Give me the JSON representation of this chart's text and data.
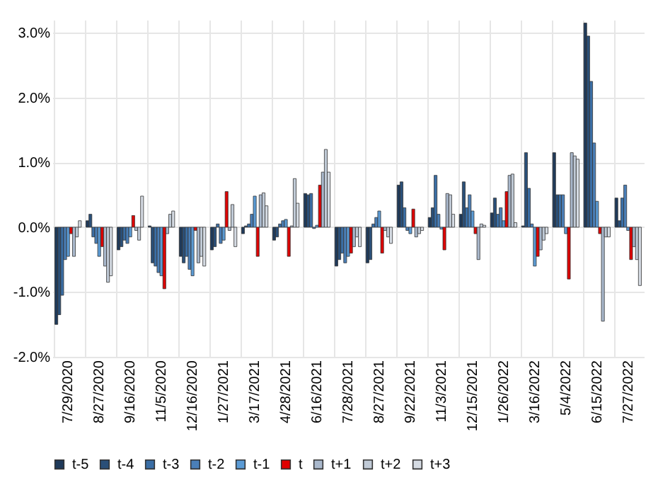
{
  "chart_data": {
    "type": "bar",
    "categories": [
      "7/29/2020",
      "8/27/2020",
      "9/16/2020",
      "11/5/2020",
      "12/16/2020",
      "1/27/2021",
      "3/17/2021",
      "4/28/2021",
      "6/16/2021",
      "7/28/2021",
      "8/27/2021",
      "9/22/2021",
      "11/3/2021",
      "12/15/2021",
      "1/26/2022",
      "3/16/2022",
      "5/4/2022",
      "6/15/2022",
      "7/27/2022"
    ],
    "series": [
      {
        "name": "t-5",
        "color": "#1f3a5a",
        "values": [
          -1.5,
          0.1,
          -0.35,
          0.02,
          -0.45,
          -0.35,
          -0.1,
          -0.2,
          0.52,
          -0.6,
          -0.55,
          0.65,
          0.15,
          0.2,
          0.22,
          0.02,
          1.15,
          3.15,
          0.45
        ]
      },
      {
        "name": "t-4",
        "color": "#2a4f78",
        "values": [
          -1.35,
          0.2,
          -0.3,
          -0.55,
          -0.55,
          -0.3,
          0.02,
          -0.15,
          0.5,
          -0.5,
          -0.5,
          0.7,
          0.3,
          0.7,
          0.45,
          1.15,
          0.5,
          2.95,
          0.1
        ]
      },
      {
        "name": "t-3",
        "color": "#3a6ea5",
        "values": [
          -1.05,
          -0.15,
          -0.2,
          -0.6,
          -0.45,
          0.05,
          0.05,
          0.05,
          0.52,
          -0.4,
          0.05,
          0.3,
          0.8,
          0.3,
          0.2,
          0.6,
          0.5,
          2.25,
          0.45
        ]
      },
      {
        "name": "t-2",
        "color": "#4a7fb8",
        "values": [
          -0.5,
          -0.25,
          -0.25,
          -0.7,
          -0.65,
          -0.25,
          0.2,
          0.1,
          -0.02,
          -0.55,
          0.15,
          -0.05,
          0.2,
          0.5,
          0.3,
          0.05,
          0.5,
          1.3,
          0.65
        ]
      },
      {
        "name": "t-1",
        "color": "#5b9bd5",
        "values": [
          -0.45,
          -0.45,
          -0.15,
          -0.75,
          -0.75,
          -0.2,
          0.48,
          0.12,
          0.03,
          -0.45,
          0.25,
          -0.1,
          -0.03,
          0.25,
          0.1,
          -0.6,
          -0.1,
          0.4,
          -0.05
        ]
      },
      {
        "name": "t",
        "color": "#e00000",
        "values": [
          -0.1,
          -0.3,
          0.18,
          -0.95,
          -0.05,
          0.55,
          -0.45,
          -0.45,
          0.65,
          -0.4,
          -0.4,
          0.28,
          -0.35,
          -0.1,
          0.55,
          -0.45,
          -0.8,
          -0.1,
          -0.5
        ]
      },
      {
        "name": "t+1",
        "color": "#a9b8cc",
        "values": [
          -0.45,
          -0.6,
          -0.05,
          -0.1,
          -0.55,
          -0.05,
          0.5,
          0.02,
          0.85,
          -0.3,
          -0.05,
          -0.15,
          0.52,
          -0.5,
          0.8,
          -0.35,
          1.15,
          -1.45,
          -0.3
        ]
      },
      {
        "name": "t+2",
        "color": "#c0cad6",
        "values": [
          -0.15,
          -0.85,
          -0.2,
          0.2,
          -0.45,
          0.35,
          0.53,
          0.75,
          1.2,
          -0.15,
          -0.15,
          -0.1,
          0.5,
          0.05,
          0.82,
          -0.2,
          1.1,
          -0.15,
          -0.5
        ]
      },
      {
        "name": "t+3",
        "color": "#d5dbe3",
        "values": [
          0.1,
          -0.75,
          0.48,
          0.25,
          -0.6,
          -0.3,
          0.33,
          0.37,
          0.85,
          -0.3,
          -0.25,
          -0.05,
          0.2,
          0.03,
          0.07,
          -0.1,
          1.05,
          -0.15,
          -0.9
        ]
      }
    ],
    "ylim": [
      -2.0,
      3.2
    ],
    "yticks": [
      {
        "value": -2,
        "label": "-2.0%"
      },
      {
        "value": -1,
        "label": "-1.0%"
      },
      {
        "value": 0,
        "label": "0.0%"
      },
      {
        "value": 1,
        "label": "1.0%"
      },
      {
        "value": 2,
        "label": "2.0%"
      },
      {
        "value": 3,
        "label": "3.0%"
      }
    ],
    "grid": true,
    "legend": "bottom"
  }
}
